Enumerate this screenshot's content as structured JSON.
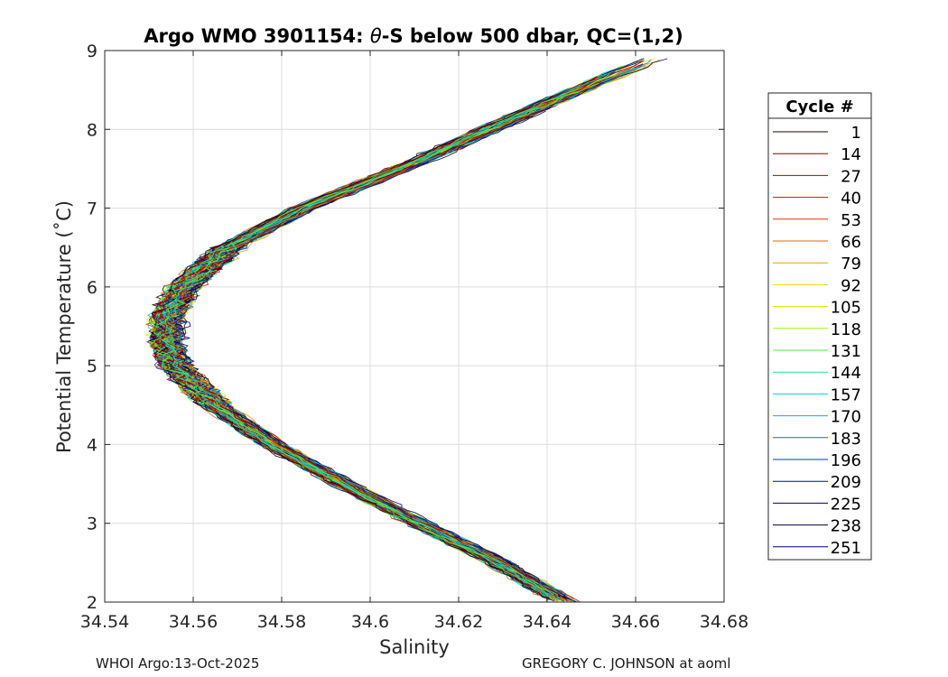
{
  "chart_data": {
    "type": "line",
    "title": "Argo WMO 3901154: θ-S below 500 dbar,  QC=(1,2)",
    "title_parts": {
      "prefix": "Argo WMO 3901154: ",
      "theta": "θ",
      "suffix": "-S below 500 dbar,  QC=(1,2)"
    },
    "xlabel": "Salinity",
    "ylabel": "Potential Temperature (˚C)",
    "xlim": [
      34.54,
      34.68
    ],
    "ylim": [
      2,
      9
    ],
    "x_ticks": [
      "34.54",
      "34.56",
      "34.58",
      "34.6",
      "34.62",
      "34.64",
      "34.66",
      "34.68"
    ],
    "y_ticks": [
      "2",
      "3",
      "4",
      "5",
      "6",
      "7",
      "8",
      "9"
    ],
    "grid": true,
    "legend": {
      "title": "Cycle #",
      "position": "right",
      "entries": [
        {
          "label": "1",
          "color": "#2a0000"
        },
        {
          "label": "14",
          "color": "#8a0000"
        },
        {
          "label": "27",
          "color": "#b00000"
        },
        {
          "label": "40",
          "color": "#cc1010"
        },
        {
          "label": "53",
          "color": "#d83a10"
        },
        {
          "label": "66",
          "color": "#e06a00"
        },
        {
          "label": "79",
          "color": "#eea000"
        },
        {
          "label": "92",
          "color": "#f6d400"
        },
        {
          "label": "105",
          "color": "#d6ee00"
        },
        {
          "label": "118",
          "color": "#9ef21a"
        },
        {
          "label": "131",
          "color": "#4cee40"
        },
        {
          "label": "144",
          "color": "#1ae896"
        },
        {
          "label": "157",
          "color": "#00dcc8"
        },
        {
          "label": "170",
          "color": "#00b4e0"
        },
        {
          "label": "183",
          "color": "#0076c8"
        },
        {
          "label": "196",
          "color": "#0040b0"
        },
        {
          "label": "209",
          "color": "#00108c"
        },
        {
          "label": "225",
          "color": "#000064"
        },
        {
          "label": "238",
          "color": "#000040"
        },
        {
          "label": "251",
          "color": "#00007c"
        }
      ]
    },
    "profile_envelope": {
      "theta": [
        2.0,
        2.5,
        3.0,
        3.5,
        4.0,
        4.5,
        5.0,
        5.3,
        5.6,
        6.0,
        6.5,
        7.0,
        7.5,
        8.0,
        8.5,
        8.9
      ],
      "salinity": [
        34.644,
        34.629,
        34.611,
        34.594,
        34.578,
        34.565,
        34.556,
        34.554,
        34.554,
        34.558,
        34.568,
        34.585,
        34.607,
        34.627,
        34.647,
        34.664
      ]
    },
    "profile_count": 251
  },
  "footer": {
    "left": "WHOI Argo:13-Oct-2025",
    "right": "GREGORY C. JOHNSON at aoml"
  }
}
